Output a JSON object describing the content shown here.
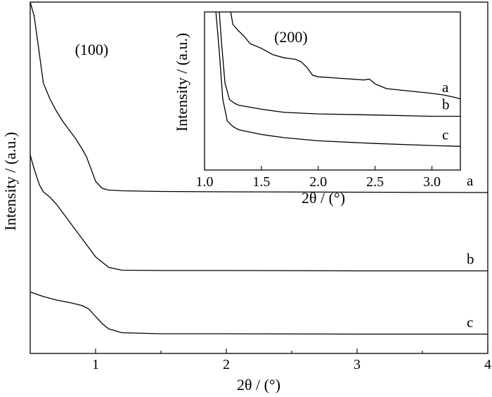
{
  "chart_data": [
    {
      "id": "main",
      "type": "line",
      "xlabel": "2θ / (°)",
      "ylabel": "Intensity / (a.u.)",
      "xlim": [
        0.5,
        4.0
      ],
      "xticks": [
        1,
        2,
        3,
        4
      ],
      "xtick_labels": [
        "1",
        "2",
        "3",
        "4"
      ],
      "ylim": [
        0,
        100
      ],
      "y_tick_labels": false,
      "annotations": [
        {
          "text": "(100)",
          "x": 0.97,
          "y": 85
        }
      ],
      "series": [
        {
          "name": "a",
          "x": [
            0.5,
            0.53,
            0.56,
            0.6,
            0.65,
            0.7,
            0.75,
            0.8,
            0.85,
            0.9,
            0.93,
            0.96,
            1.0,
            1.05,
            1.1,
            1.2,
            1.5,
            2.0,
            3.0,
            4.0
          ],
          "y": [
            100,
            96,
            88,
            77,
            72.5,
            69,
            66,
            63.5,
            61,
            58,
            56,
            53,
            49,
            47,
            46.5,
            46.3,
            46.1,
            46.0,
            45.9,
            45.8
          ]
        },
        {
          "name": "b",
          "x": [
            0.5,
            0.53,
            0.57,
            0.6,
            0.65,
            0.7,
            0.8,
            0.9,
            1.0,
            1.1,
            1.2,
            1.5,
            2.0,
            3.0,
            4.0
          ],
          "y": [
            56.5,
            52.5,
            48,
            46,
            44.5,
            42.5,
            37.5,
            32.5,
            27.5,
            24.5,
            23.7,
            23.6,
            23.6,
            23.5,
            23.5
          ]
        },
        {
          "name": "c",
          "x": [
            0.5,
            0.6,
            0.7,
            0.8,
            0.9,
            0.95,
            1.0,
            1.05,
            1.1,
            1.2,
            1.5,
            2.0,
            3.0,
            4.0
          ],
          "y": [
            17.5,
            16.2,
            15.2,
            14.5,
            13.6,
            12.6,
            10.5,
            8.5,
            7,
            5.9,
            5.6,
            5.6,
            5.5,
            5.5
          ]
        }
      ]
    },
    {
      "id": "inset",
      "type": "line",
      "xlabel": "2θ / (°)",
      "ylabel": "Intensity / (a.u.)",
      "xlim": [
        1.0,
        3.25
      ],
      "xticks": [
        1.0,
        1.5,
        2.0,
        2.5,
        3.0
      ],
      "xtick_labels": [
        "1.0",
        "1.5",
        "2.0",
        "2.5",
        "3.0"
      ],
      "ylim": [
        0,
        100
      ],
      "y_tick_labels": false,
      "annotations": [
        {
          "text": "(200)",
          "x": 1.76,
          "y": 81
        }
      ],
      "series": [
        {
          "name": "a",
          "x": [
            1.23,
            1.25,
            1.3,
            1.35,
            1.4,
            1.5,
            1.6,
            1.7,
            1.75,
            1.8,
            1.85,
            1.9,
            1.95,
            2.0,
            2.2,
            2.4,
            2.45,
            2.5,
            2.6,
            2.8,
            3.0,
            3.1,
            3.2,
            3.25
          ],
          "y": [
            100,
            92,
            88,
            84.5,
            80,
            77,
            73,
            71,
            70.5,
            70,
            68.5,
            65,
            60,
            59,
            58,
            57,
            57.5,
            54.5,
            51.5,
            50,
            48.5,
            47.5,
            46,
            45
          ]
        },
        {
          "name": "b",
          "x": [
            1.13,
            1.15,
            1.18,
            1.22,
            1.27,
            1.3,
            1.5,
            1.7,
            2.0,
            2.5,
            3.0,
            3.25
          ],
          "y": [
            100,
            80,
            55,
            44.5,
            42,
            41,
            38.5,
            36.5,
            35.5,
            34.8,
            34,
            34
          ]
        },
        {
          "name": "c",
          "x": [
            1.1,
            1.13,
            1.16,
            1.2,
            1.25,
            1.3,
            1.5,
            1.7,
            2.0,
            2.5,
            3.0,
            3.25
          ],
          "y": [
            100,
            75,
            45,
            31,
            27.5,
            25.5,
            22.5,
            20.5,
            18.5,
            16.8,
            15.5,
            15
          ]
        }
      ]
    }
  ]
}
